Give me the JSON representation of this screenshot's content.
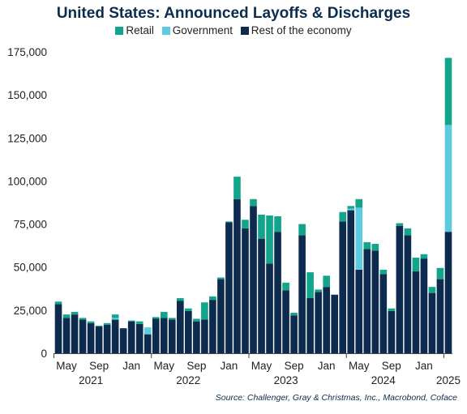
{
  "chart_data": {
    "type": "bar",
    "stacked": true,
    "title": "United States: Announced Layoffs & Discharges",
    "source": "Source: Challenger, Gray & Christmas, Inc., Macrobond, Coface",
    "series": [
      {
        "name": "Rest of the economy",
        "color": "#0c2b4e",
        "values": [
          28500,
          20500,
          22500,
          19500,
          17500,
          15500,
          16500,
          19500,
          14500,
          18500,
          17000,
          11000,
          20000,
          20500,
          19500,
          30500,
          24500,
          18500,
          19500,
          31000,
          43000,
          76000,
          89500,
          72500,
          85500,
          66500,
          52000,
          70500,
          36500,
          22000,
          68500,
          32000,
          35500,
          38500,
          34000,
          76500,
          83000,
          48500,
          60500,
          59500,
          46000,
          24500,
          74000,
          68500,
          47500,
          55000,
          35000,
          43000,
          70500
        ]
      },
      {
        "name": "Government",
        "color": "#5ccbdf",
        "values": [
          0,
          0,
          0,
          0,
          0,
          0,
          0,
          1000,
          0,
          0,
          0,
          4000,
          0,
          0,
          0,
          0,
          0,
          0,
          0,
          0,
          0,
          0,
          0,
          0,
          0,
          0,
          0,
          0,
          0,
          0,
          0,
          0,
          0,
          0,
          0,
          0,
          1000,
          36000,
          0,
          0,
          0,
          0,
          0,
          0,
          0,
          0,
          0,
          0,
          62000
        ]
      },
      {
        "name": "Retail",
        "color": "#12a58b",
        "values": [
          1500,
          2000,
          1500,
          1000,
          1000,
          500,
          1000,
          2000,
          0,
          500,
          1500,
          0,
          1000,
          3500,
          1000,
          1500,
          1500,
          1500,
          10000,
          2000,
          1000,
          500,
          13000,
          5000,
          4000,
          14000,
          28000,
          9000,
          4500,
          1500,
          6500,
          15000,
          1500,
          6500,
          0,
          5500,
          1500,
          5000,
          4000,
          4000,
          2500,
          1500,
          1500,
          4000,
          8000,
          2500,
          3500,
          6500,
          39000
        ]
      }
    ],
    "x_ticks": [
      {
        "label": "May",
        "index": 1
      },
      {
        "label": "Sep",
        "index": 5
      },
      {
        "label": "Jan",
        "index": 9
      },
      {
        "label": "May",
        "index": 13
      },
      {
        "label": "Sep",
        "index": 17
      },
      {
        "label": "Jan",
        "index": 21
      },
      {
        "label": "May",
        "index": 25
      },
      {
        "label": "Sep",
        "index": 29
      },
      {
        "label": "Jan",
        "index": 33
      },
      {
        "label": "May",
        "index": 37
      },
      {
        "label": "Sep",
        "index": 41
      },
      {
        "label": "Jan",
        "index": 45
      }
    ],
    "year_labels": [
      {
        "label": "2021",
        "index": 4
      },
      {
        "label": "2022",
        "index": 16
      },
      {
        "label": "2023",
        "index": 28
      },
      {
        "label": "2024",
        "index": 40
      },
      {
        "label": "2025",
        "index": 48
      }
    ],
    "y_ticks": [
      0,
      25000,
      50000,
      75000,
      100000,
      125000,
      150000,
      175000
    ],
    "y_tick_labels": [
      "0",
      "25,000",
      "50,000",
      "75,000",
      "100,000",
      "125,000",
      "150,000",
      "175,000"
    ],
    "ylim": [
      0,
      175000
    ],
    "grid": false,
    "legend_position": "top"
  }
}
